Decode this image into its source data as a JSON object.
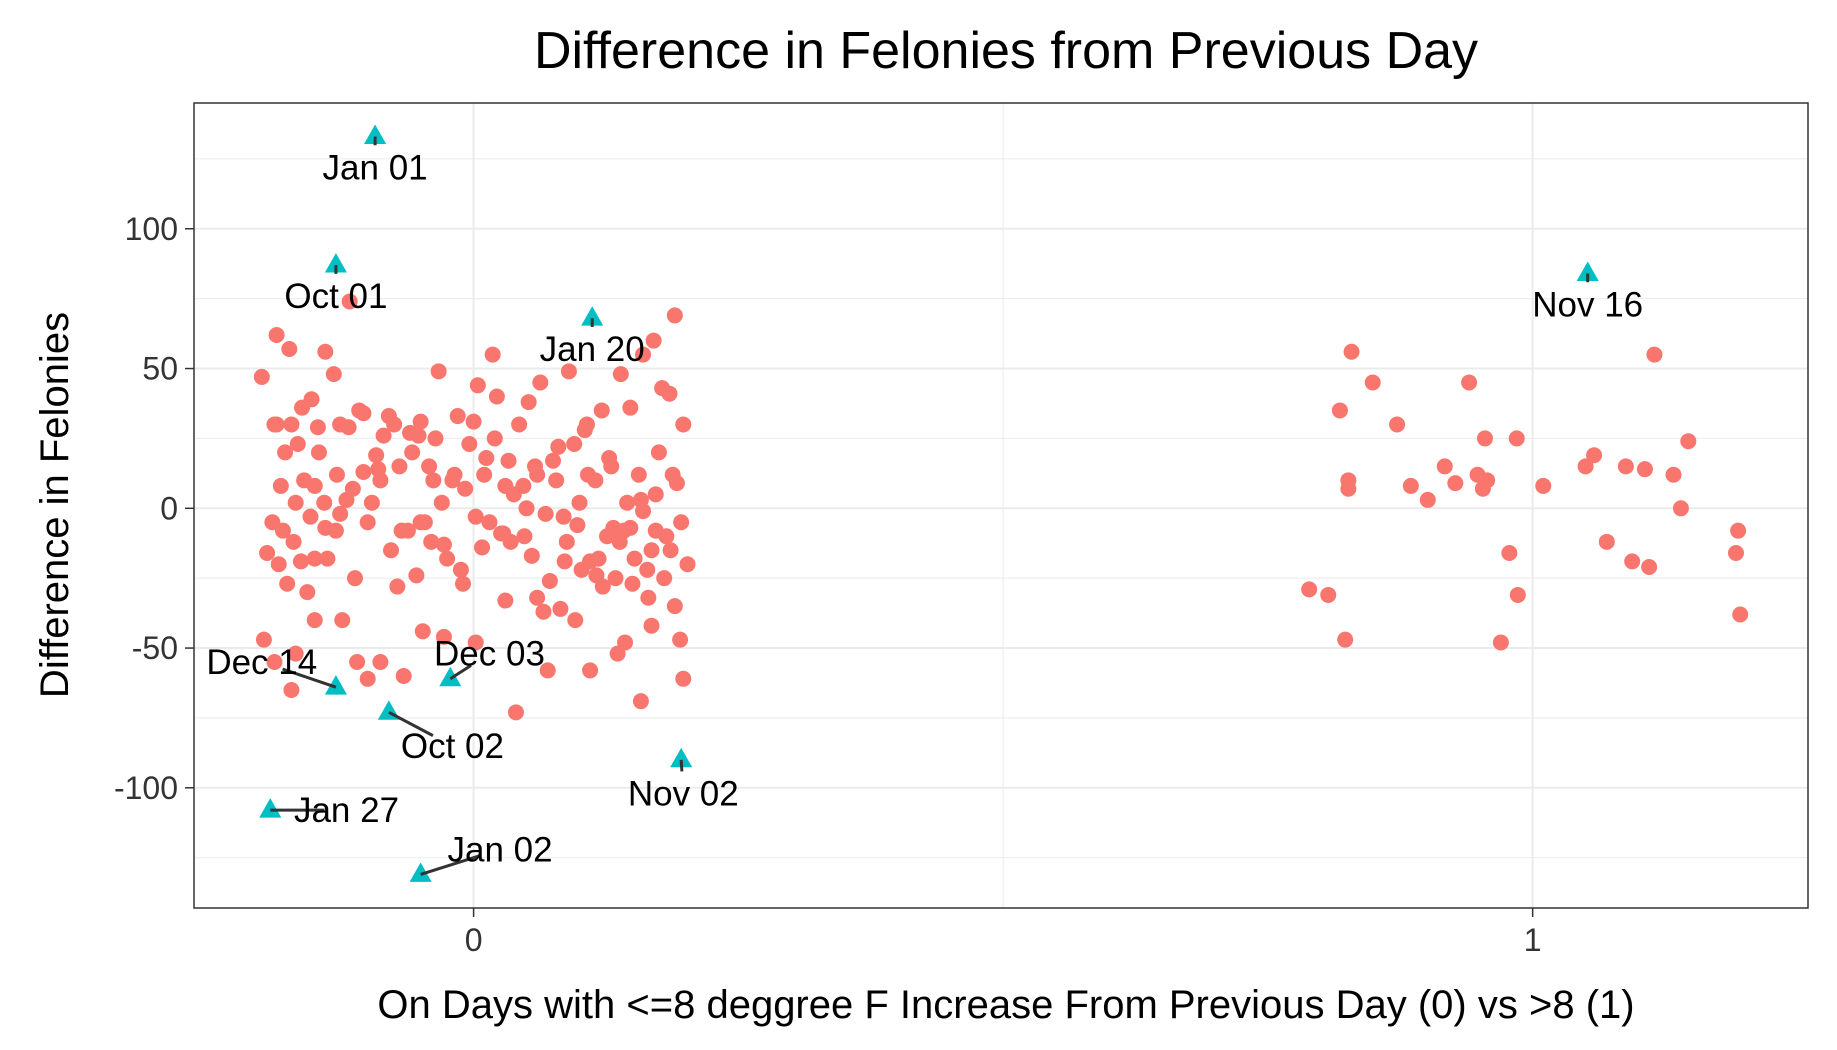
{
  "chart_data": {
    "type": "scatter",
    "title": "Difference in Felonies from Previous Day",
    "xlabel": "On Days with <=8 deggree F Increase From Previous Day (0) vs >8 (1)",
    "ylabel": "Difference in Felonies",
    "xlim": [
      -0.264,
      1.26
    ],
    "ylim": [
      -143,
      145
    ],
    "x_ticks": [
      0,
      1
    ],
    "x_tick_labels": [
      "0",
      "1"
    ],
    "y_ticks": [
      -100,
      -50,
      0,
      50,
      100
    ],
    "y_tick_labels": [
      "-100",
      "-50",
      "0",
      "50",
      "100"
    ],
    "grid": true,
    "legend": "none",
    "colors": {
      "normal": "#F8766D",
      "highlight": "#00BFC4",
      "grid": "#ebebeb",
      "panel_border": "#333333",
      "segment": "#333333"
    },
    "series": [
      {
        "marker": "circle",
        "color": "#F8766D",
        "points": [
          [
            -0.186,
            62
          ],
          [
            -0.174,
            57
          ],
          [
            -0.14,
            56
          ],
          [
            -0.117,
            74
          ],
          [
            -0.132,
            48
          ],
          [
            -0.2,
            47
          ],
          [
            -0.153,
            39
          ],
          [
            -0.172,
            30
          ],
          [
            -0.178,
            20
          ],
          [
            -0.166,
            23
          ],
          [
            -0.182,
            8
          ],
          [
            -0.19,
            -5
          ],
          [
            -0.184,
            -20
          ],
          [
            -0.176,
            -27
          ],
          [
            -0.17,
            -12
          ],
          [
            -0.163,
            -19
          ],
          [
            -0.15,
            8
          ],
          [
            -0.141,
            2
          ],
          [
            -0.129,
            12
          ],
          [
            -0.118,
            29
          ],
          [
            -0.1,
            -5
          ],
          [
            -0.09,
            14
          ],
          [
            -0.08,
            33
          ],
          [
            -0.07,
            15
          ],
          [
            -0.062,
            -8
          ],
          [
            -0.052,
            26
          ],
          [
            -0.042,
            15
          ],
          [
            -0.033,
            49
          ],
          [
            -0.02,
            10
          ],
          [
            -0.012,
            -22
          ],
          [
            -0.004,
            23
          ],
          [
            0.004,
            44
          ],
          [
            0.01,
            12
          ],
          [
            0.018,
            55
          ],
          [
            0.026,
            -9
          ],
          [
            0.033,
            17
          ],
          [
            0.043,
            30
          ],
          [
            0.052,
            38
          ],
          [
            0.06,
            12
          ],
          [
            0.072,
            -26
          ],
          [
            0.08,
            22
          ],
          [
            0.09,
            49
          ],
          [
            0.1,
            2
          ],
          [
            0.11,
            -19
          ],
          [
            0.121,
            35
          ],
          [
            0.13,
            15
          ],
          [
            0.139,
            48
          ],
          [
            0.148,
            36
          ],
          [
            0.158,
            3
          ],
          [
            0.168,
            -15
          ],
          [
            0.178,
            43
          ],
          [
            0.188,
            12
          ],
          [
            0.196,
            -5
          ],
          [
            0.202,
            -20
          ],
          [
            0.19,
            69
          ],
          [
            0.185,
            41
          ],
          [
            0.17,
            60
          ],
          [
            0.16,
            55
          ],
          [
            0.145,
            2
          ],
          [
            0.136,
            -52
          ],
          [
            0.122,
            -28
          ],
          [
            0.11,
            -58
          ],
          [
            0.096,
            -40
          ],
          [
            0.082,
            -36
          ],
          [
            0.07,
            -58
          ],
          [
            0.04,
            -73
          ],
          [
            0.002,
            -48
          ],
          [
            -0.028,
            -46
          ],
          [
            -0.048,
            -44
          ],
          [
            -0.066,
            -60
          ],
          [
            -0.088,
            -55
          ],
          [
            -0.124,
            -40
          ],
          [
            -0.15,
            -40
          ],
          [
            -0.172,
            -65
          ],
          [
            -0.188,
            -55
          ],
          [
            -0.198,
            -47
          ],
          [
            -0.11,
            -55
          ],
          [
            -0.1,
            -61
          ],
          [
            -0.188,
            30
          ],
          [
            -0.157,
            -30
          ],
          [
            -0.162,
            36
          ],
          [
            -0.147,
            29
          ],
          [
            -0.126,
            30
          ],
          [
            -0.108,
            35
          ],
          [
            -0.085,
            26
          ],
          [
            -0.075,
            30
          ],
          [
            -0.06,
            27
          ],
          [
            -0.05,
            31
          ],
          [
            -0.038,
            10
          ],
          [
            -0.025,
            -18
          ],
          [
            -0.015,
            33
          ],
          [
            0.0,
            31
          ],
          [
            0.015,
            -5
          ],
          [
            0.022,
            40
          ],
          [
            0.035,
            -12
          ],
          [
            0.047,
            8
          ],
          [
            0.055,
            -17
          ],
          [
            0.063,
            45
          ],
          [
            0.075,
            17
          ],
          [
            0.085,
            -3
          ],
          [
            0.095,
            23
          ],
          [
            0.105,
            28
          ],
          [
            0.115,
            10
          ],
          [
            0.126,
            -10
          ],
          [
            0.134,
            -25
          ],
          [
            0.142,
            -8
          ],
          [
            0.152,
            -18
          ],
          [
            0.16,
            -1
          ],
          [
            0.165,
            -32
          ],
          [
            0.175,
            20
          ],
          [
            0.18,
            -25
          ],
          [
            0.192,
            9
          ],
          [
            0.195,
            -47
          ],
          [
            0.198,
            30
          ],
          [
            -0.195,
            -16
          ],
          [
            -0.18,
            -8
          ],
          [
            -0.168,
            2
          ],
          [
            -0.16,
            10
          ],
          [
            -0.154,
            -3
          ],
          [
            -0.146,
            20
          ],
          [
            -0.138,
            -18
          ],
          [
            -0.13,
            -8
          ],
          [
            -0.12,
            3
          ],
          [
            -0.112,
            -25
          ],
          [
            -0.104,
            13
          ],
          [
            -0.096,
            2
          ],
          [
            -0.088,
            10
          ],
          [
            -0.078,
            -15
          ],
          [
            -0.068,
            -8
          ],
          [
            -0.058,
            20
          ],
          [
            -0.046,
            -5
          ],
          [
            -0.036,
            25
          ],
          [
            -0.028,
            -13
          ],
          [
            -0.018,
            12
          ],
          [
            -0.008,
            7
          ],
          [
            0.002,
            -3
          ],
          [
            0.012,
            18
          ],
          [
            0.02,
            25
          ],
          [
            0.028,
            -9
          ],
          [
            0.038,
            5
          ],
          [
            0.048,
            -10
          ],
          [
            0.058,
            15
          ],
          [
            0.068,
            -2
          ],
          [
            0.078,
            10
          ],
          [
            0.088,
            -12
          ],
          [
            0.098,
            -6
          ],
          [
            0.108,
            12
          ],
          [
            0.118,
            -18
          ],
          [
            0.128,
            18
          ],
          [
            0.138,
            -12
          ],
          [
            0.148,
            -7
          ],
          [
            0.156,
            12
          ],
          [
            0.164,
            -22
          ],
          [
            0.172,
            -8
          ],
          [
            0.182,
            -10
          ],
          [
            0.19,
            -35
          ],
          [
            -0.15,
            -18
          ],
          [
            -0.14,
            -7
          ],
          [
            -0.126,
            -2
          ],
          [
            -0.114,
            7
          ],
          [
            -0.092,
            19
          ],
          [
            -0.072,
            -28
          ],
          [
            -0.054,
            -24
          ],
          [
            -0.04,
            -12
          ],
          [
            -0.03,
            2
          ],
          [
            -0.01,
            -27
          ],
          [
            0.008,
            -14
          ],
          [
            0.03,
            -33
          ],
          [
            0.05,
            0
          ],
          [
            0.066,
            -37
          ],
          [
            0.086,
            -19
          ],
          [
            0.102,
            -22
          ],
          [
            0.116,
            -24
          ],
          [
            0.132,
            -7
          ],
          [
            0.15,
            -27
          ],
          [
            0.168,
            -42
          ],
          [
            0.186,
            -15
          ],
          [
            0.198,
            -61
          ],
          [
            -0.186,
            30
          ],
          [
            -0.168,
            -52
          ],
          [
            -0.104,
            34
          ],
          [
            -0.05,
            -5
          ],
          [
            0.03,
            8
          ],
          [
            0.06,
            -32
          ],
          [
            0.107,
            30
          ],
          [
            0.143,
            -48
          ],
          [
            0.158,
            -69
          ],
          [
            0.172,
            5
          ],
          [
            1.14,
            0
          ]
        ]
      },
      {
        "marker": "circle",
        "color": "#F8766D",
        "points": [
          [
            0.829,
            56
          ],
          [
            0.849,
            45
          ],
          [
            0.826,
            10
          ],
          [
            0.826,
            7
          ],
          [
            0.818,
            35
          ],
          [
            0.872,
            30
          ],
          [
            0.789,
            -29
          ],
          [
            0.807,
            -31
          ],
          [
            0.823,
            -47
          ],
          [
            0.885,
            8
          ],
          [
            0.901,
            3
          ],
          [
            0.917,
            15
          ],
          [
            0.927,
            9
          ],
          [
            0.94,
            45
          ],
          [
            0.948,
            12
          ],
          [
            0.953,
            7
          ],
          [
            0.955,
            25
          ],
          [
            0.957,
            10
          ],
          [
            0.978,
            -16
          ],
          [
            0.985,
            25
          ],
          [
            0.986,
            -31
          ],
          [
            0.97,
            -48
          ],
          [
            1.01,
            8
          ],
          [
            1.05,
            15
          ],
          [
            1.058,
            19
          ],
          [
            1.088,
            15
          ],
          [
            1.094,
            -19
          ],
          [
            1.07,
            -12
          ],
          [
            1.106,
            14
          ],
          [
            1.11,
            -21
          ],
          [
            1.115,
            55
          ],
          [
            1.147,
            24
          ],
          [
            1.133,
            12
          ],
          [
            1.194,
            -8
          ],
          [
            1.192,
            -16
          ],
          [
            1.196,
            -38
          ]
        ]
      },
      {
        "marker": "triangle",
        "color": "#00BFC4",
        "points": [
          [
            -0.093,
            133
          ],
          [
            -0.13,
            87
          ],
          [
            0.112,
            68
          ],
          [
            1.052,
            84
          ],
          [
            -0.13,
            -64
          ],
          [
            -0.022,
            -61
          ],
          [
            -0.08,
            -73
          ],
          [
            0.196,
            -90
          ],
          [
            -0.192,
            -108
          ],
          [
            -0.05,
            -131
          ]
        ]
      }
    ],
    "annotations": [
      {
        "label": "Jan 01",
        "x": -0.093,
        "y": 133,
        "text_x": -0.093,
        "text_y": 122
      },
      {
        "label": "Oct 01",
        "x": -0.13,
        "y": 87,
        "text_x": -0.13,
        "text_y": 76
      },
      {
        "label": "Jan 20",
        "x": 0.112,
        "y": 68,
        "text_x": 0.112,
        "text_y": 57
      },
      {
        "label": "Nov 16",
        "x": 1.052,
        "y": 84,
        "text_x": 1.052,
        "text_y": 73
      },
      {
        "label": "Dec 14",
        "x": -0.13,
        "y": -64,
        "text_x": -0.2,
        "text_y": -55
      },
      {
        "label": "Dec 03",
        "x": -0.022,
        "y": -61,
        "text_x": 0.015,
        "text_y": -52
      },
      {
        "label": "Oct 02",
        "x": -0.08,
        "y": -73,
        "text_x": -0.02,
        "text_y": -85
      },
      {
        "label": "Nov 02",
        "x": 0.196,
        "y": -90,
        "text_x": 0.198,
        "text_y": -102
      },
      {
        "label": "Jan 27",
        "x": -0.192,
        "y": -108,
        "text_x": -0.12,
        "text_y": -108
      },
      {
        "label": "Jan 02",
        "x": -0.05,
        "y": -131,
        "text_x": 0.025,
        "text_y": -122
      }
    ]
  }
}
